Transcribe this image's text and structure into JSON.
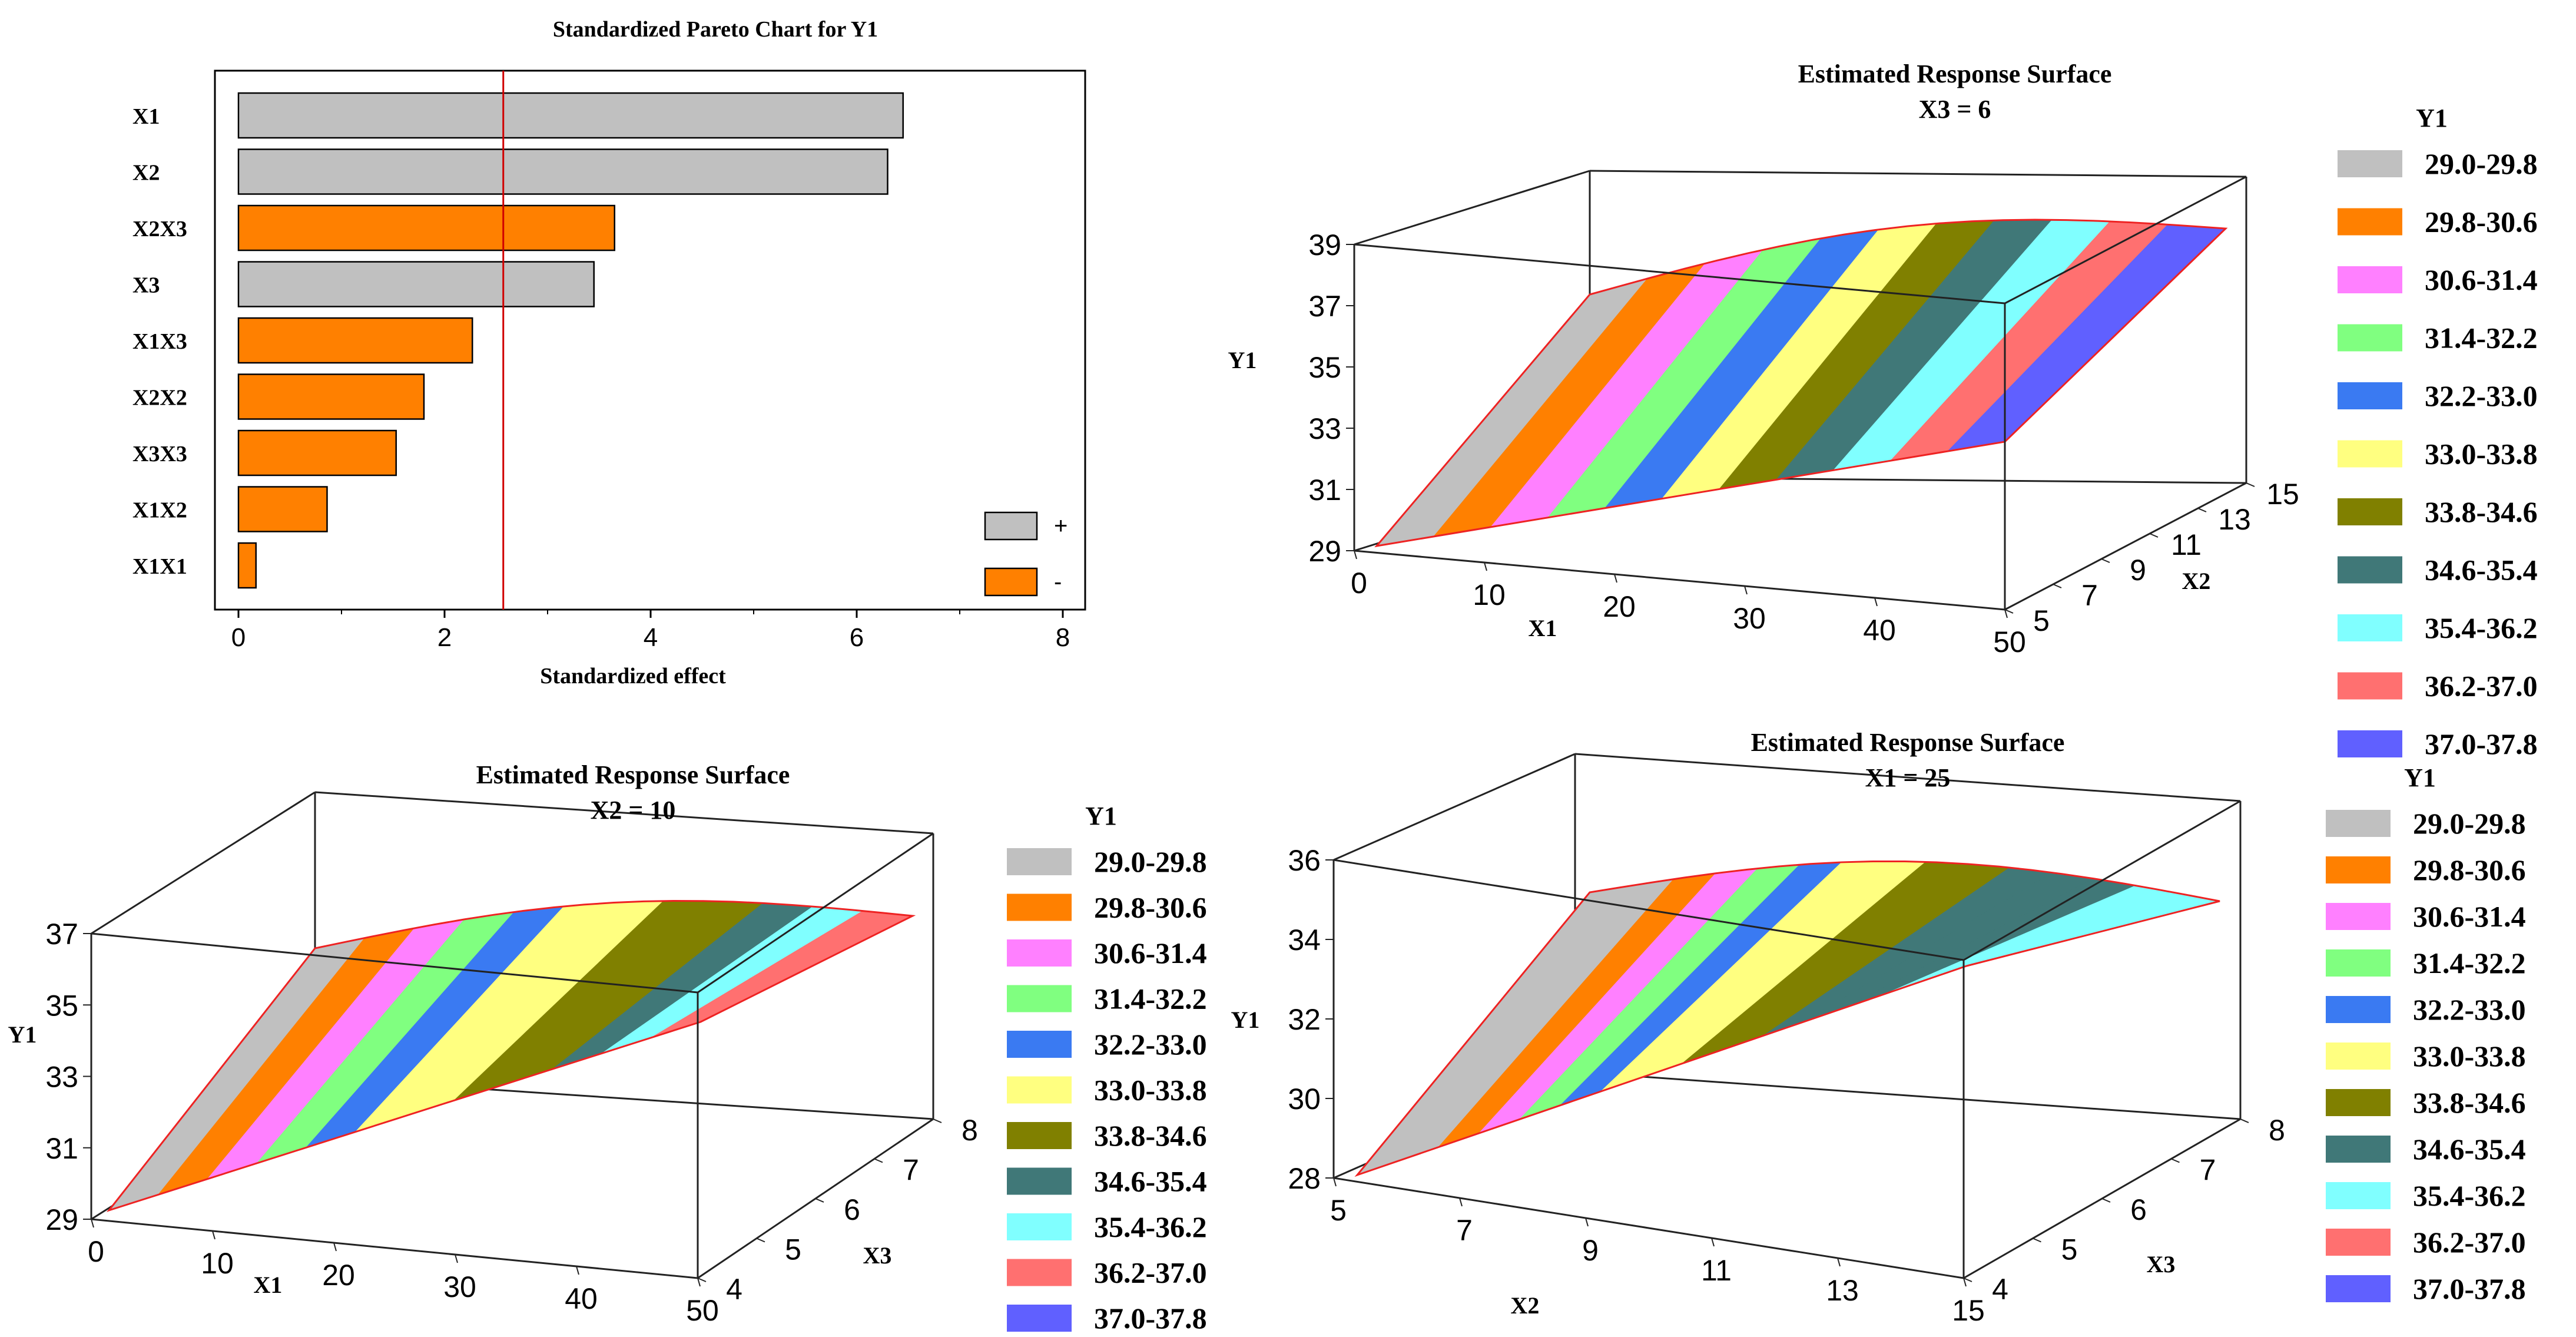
{
  "colors": {
    "positive_bar": "#c0c0c0",
    "negative_bar": "#ff8000",
    "reference_line": "#d00000",
    "surface_edge": "#ee2222",
    "bands": [
      "#c0c0c0",
      "#ff8000",
      "#ff80ff",
      "#80ff80",
      "#3a7af2",
      "#ffff80",
      "#808000",
      "#407878",
      "#80ffff",
      "#ff7070",
      "#6060ff"
    ]
  },
  "chart_data": [
    {
      "type": "bar",
      "orientation": "horizontal",
      "title": "Standardized Pareto Chart for Y1",
      "xlabel": "Standardized effect",
      "ylabel": "",
      "xlim": [
        0,
        8
      ],
      "xticks": [
        "0",
        "2",
        "4",
        "6",
        "8"
      ],
      "categories": [
        "X1",
        "X2",
        "X2X3",
        "X3",
        "X1X3",
        "X2X2",
        "X3X3",
        "X1X2",
        "X1X1"
      ],
      "values": [
        6.45,
        6.3,
        3.65,
        3.45,
        2.27,
        1.8,
        1.53,
        0.86,
        0.17
      ],
      "signs": [
        "+",
        "+",
        "-",
        "+",
        "-",
        "-",
        "-",
        "-",
        "-"
      ],
      "reference_line": 2.57,
      "legend": [
        {
          "label": "+",
          "color": "#c0c0c0"
        },
        {
          "label": "-",
          "color": "#ff8000"
        }
      ],
      "legend_position": "bottom-right"
    },
    {
      "type": "surface",
      "title": "Estimated Response Surface",
      "subtitle": "X3 = 6",
      "xlabel": "X1",
      "ylabel": "X2",
      "zlabel": "Y1",
      "x_ticks": [
        "0",
        "10",
        "20",
        "30",
        "40",
        "50"
      ],
      "y_ticks": [
        "5",
        "7",
        "9",
        "11",
        "13",
        "15"
      ],
      "z_ticks": [
        "29",
        "31",
        "33",
        "35",
        "37",
        "39"
      ],
      "zlim": [
        29,
        39
      ],
      "legend_title": "Y1",
      "legend": [
        "29.0-29.8",
        "29.8-30.6",
        "30.6-31.4",
        "31.4-32.2",
        "32.2-33.0",
        "33.0-33.8",
        "33.8-34.6",
        "34.6-35.4",
        "35.4-36.2",
        "36.2-37.0",
        "37.0-37.8"
      ]
    },
    {
      "type": "surface",
      "title": "Estimated Response Surface",
      "subtitle": "X2 = 10",
      "xlabel": "X1",
      "ylabel": "X3",
      "zlabel": "Y1",
      "x_ticks": [
        "0",
        "10",
        "20",
        "30",
        "40",
        "50"
      ],
      "y_ticks": [
        "4",
        "5",
        "6",
        "7",
        "8"
      ],
      "z_ticks": [
        "29",
        "31",
        "33",
        "35",
        "37"
      ],
      "zlim": [
        29,
        37
      ],
      "legend_title": "Y1",
      "legend": [
        "29.0-29.8",
        "29.8-30.6",
        "30.6-31.4",
        "31.4-32.2",
        "32.2-33.0",
        "33.0-33.8",
        "33.8-34.6",
        "34.6-35.4",
        "35.4-36.2",
        "36.2-37.0",
        "37.0-37.8"
      ]
    },
    {
      "type": "surface",
      "title": "Estimated Response Surface",
      "subtitle": "X1 = 25",
      "xlabel": "X2",
      "ylabel": "X3",
      "zlabel": "Y1",
      "x_ticks": [
        "5",
        "7",
        "9",
        "11",
        "13",
        "15"
      ],
      "y_ticks": [
        "4",
        "5",
        "6",
        "7",
        "8"
      ],
      "z_ticks": [
        "28",
        "30",
        "32",
        "34",
        "36"
      ],
      "zlim": [
        28,
        36
      ],
      "legend_title": "Y1",
      "legend": [
        "29.0-29.8",
        "29.8-30.6",
        "30.6-31.4",
        "31.4-32.2",
        "32.2-33.0",
        "33.0-33.8",
        "33.8-34.6",
        "34.6-35.4",
        "35.4-36.2",
        "36.2-37.0",
        "37.0-37.8"
      ]
    }
  ]
}
